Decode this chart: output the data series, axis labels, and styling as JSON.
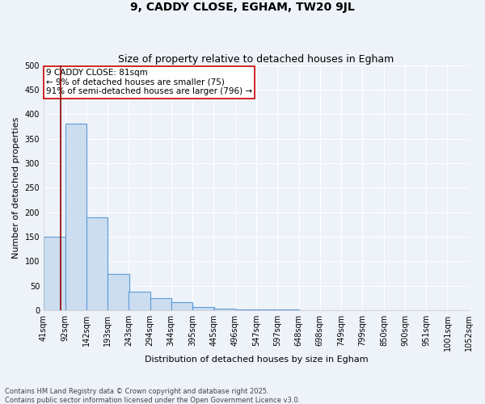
{
  "title1": "9, CADDY CLOSE, EGHAM, TW20 9JL",
  "title2": "Size of property relative to detached houses in Egham",
  "xlabel": "Distribution of detached houses by size in Egham",
  "ylabel": "Number of detached properties",
  "bin_edges": [
    41,
    92,
    142,
    193,
    243,
    294,
    344,
    395,
    445,
    496,
    547,
    597,
    648,
    698,
    749,
    799,
    850,
    900,
    951,
    1001,
    1052
  ],
  "bar_heights": [
    150,
    380,
    190,
    75,
    38,
    25,
    17,
    7,
    4,
    2,
    1,
    1,
    0,
    0,
    0,
    0,
    0,
    0,
    0,
    0
  ],
  "bar_color": "#ccddf0",
  "bar_edge_color": "#5b9bd5",
  "property_size": 81,
  "vline_color": "#8b0000",
  "annotation_title": "9 CADDY CLOSE: 81sqm",
  "annotation_line1": "← 9% of detached houses are smaller (75)",
  "annotation_line2": "91% of semi-detached houses are larger (796) →",
  "annotation_box_color": "#ffffff",
  "annotation_border_color": "#cc0000",
  "ylim": [
    0,
    500
  ],
  "yticks": [
    0,
    50,
    100,
    150,
    200,
    250,
    300,
    350,
    400,
    450,
    500
  ],
  "tick_labels": [
    "41sqm",
    "92sqm",
    "142sqm",
    "193sqm",
    "243sqm",
    "294sqm",
    "344sqm",
    "395sqm",
    "445sqm",
    "496sqm",
    "547sqm",
    "597sqm",
    "648sqm",
    "698sqm",
    "749sqm",
    "799sqm",
    "850sqm",
    "900sqm",
    "951sqm",
    "1001sqm",
    "1052sqm"
  ],
  "footnote1": "Contains HM Land Registry data © Crown copyright and database right 2025.",
  "footnote2": "Contains public sector information licensed under the Open Government Licence v3.0.",
  "bg_color": "#eef2f9",
  "grid_color": "#ffffff",
  "title_fontsize": 10,
  "subtitle_fontsize": 9,
  "axis_label_fontsize": 8,
  "tick_fontsize": 7,
  "annotation_fontsize": 7.5,
  "footnote_fontsize": 6
}
